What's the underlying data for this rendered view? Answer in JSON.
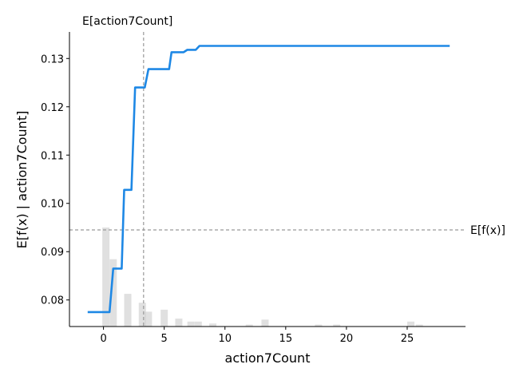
{
  "chart_data": {
    "type": "line",
    "title": "",
    "xlabel": "action7Count",
    "ylabel": "E[f(x) | action7Count]",
    "xlim": [
      -2.8,
      29.8
    ],
    "ylim": [
      0.0745,
      0.1355
    ],
    "xticks": [
      0,
      5,
      10,
      15,
      20,
      25
    ],
    "yticks": [
      0.08,
      0.09,
      0.1,
      0.11,
      0.12,
      0.13
    ],
    "ytick_labels": [
      "0.08",
      "0.09",
      "0.10",
      "0.11",
      "0.12",
      "0.13"
    ],
    "grid": false,
    "series": [
      {
        "color": "#1e88e5",
        "x": [
          -1.3,
          0.5,
          0.8,
          1.5,
          1.7,
          2.3,
          2.6,
          3.4,
          3.7,
          5.4,
          5.6,
          6.6,
          6.9,
          7.6,
          7.9,
          28.5
        ],
        "y": [
          0.0775,
          0.0775,
          0.0865,
          0.0865,
          0.1028,
          0.1028,
          0.124,
          0.124,
          0.1278,
          0.1278,
          0.1313,
          0.1313,
          0.1318,
          0.1318,
          0.1326,
          0.1326
        ]
      }
    ],
    "histogram": {
      "color": "#cccccc",
      "x": [
        0.2,
        0.8,
        2.0,
        3.2,
        3.7,
        5.0,
        6.2,
        7.2,
        7.8,
        9.0,
        12.0,
        13.3,
        17.7,
        19.2,
        25.3,
        26.0
      ],
      "relative_height": [
        1.0,
        0.68,
        0.33,
        0.24,
        0.15,
        0.17,
        0.08,
        0.05,
        0.05,
        0.03,
        0.02,
        0.07,
        0.02,
        0.02,
        0.05,
        0.02
      ]
    },
    "reference_lines": {
      "vertical": {
        "x": 3.3,
        "label": "E[action7Count]"
      },
      "horizontal": {
        "y": 0.0945,
        "label": "E[f(x)]"
      }
    }
  }
}
